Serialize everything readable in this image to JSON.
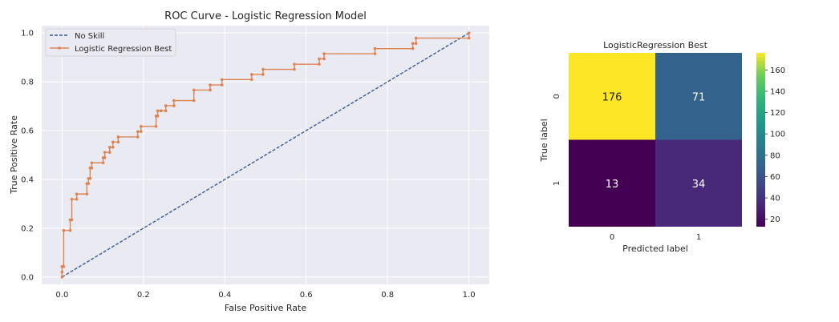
{
  "chart_data": [
    {
      "type": "line",
      "title": "ROC Curve - Logistic Regression Model",
      "xlabel": "False Positive Rate",
      "ylabel": "True Positive Rate",
      "xlim": [
        -0.05,
        1.05
      ],
      "ylim": [
        -0.03,
        1.03
      ],
      "xticks": [
        0.0,
        0.2,
        0.4,
        0.6,
        0.8,
        1.0
      ],
      "xtick_labels": [
        "0.0",
        "0.2",
        "0.4",
        "0.6",
        "0.8",
        "1.0"
      ],
      "yticks": [
        0.0,
        0.2,
        0.4,
        0.6,
        0.8,
        1.0
      ],
      "ytick_labels": [
        "0.0",
        "0.2",
        "0.4",
        "0.6",
        "0.8",
        "1.0"
      ],
      "grid": true,
      "legend": "top-left",
      "series": [
        {
          "name": "No Skill",
          "style": "dashed",
          "color": "#3b5b92",
          "x": [
            0,
            1
          ],
          "y": [
            0,
            1
          ]
        },
        {
          "name": "Logistic Regression Best",
          "style": "step-markers",
          "color": "#dd8452",
          "x": [
            0.0,
            0.0,
            0.0,
            0.004,
            0.004,
            0.004,
            0.02,
            0.02,
            0.024,
            0.024,
            0.036,
            0.036,
            0.061,
            0.061,
            0.065,
            0.065,
            0.069,
            0.069,
            0.073,
            0.073,
            0.101,
            0.101,
            0.105,
            0.105,
            0.117,
            0.117,
            0.125,
            0.125,
            0.138,
            0.138,
            0.186,
            0.186,
            0.194,
            0.194,
            0.231,
            0.231,
            0.235,
            0.235,
            0.243,
            0.243,
            0.255,
            0.255,
            0.275,
            0.275,
            0.324,
            0.324,
            0.364,
            0.364,
            0.393,
            0.393,
            0.466,
            0.466,
            0.494,
            0.494,
            0.571,
            0.571,
            0.632,
            0.632,
            0.644,
            0.644,
            0.769,
            0.769,
            0.862,
            0.862,
            0.87,
            0.87,
            1.0,
            1.0
          ],
          "y": [
            0.0,
            0.021,
            0.043,
            0.043,
            0.191,
            0.191,
            0.191,
            0.234,
            0.234,
            0.319,
            0.319,
            0.34,
            0.34,
            0.383,
            0.383,
            0.404,
            0.404,
            0.447,
            0.447,
            0.468,
            0.468,
            0.489,
            0.489,
            0.511,
            0.511,
            0.532,
            0.532,
            0.553,
            0.553,
            0.574,
            0.574,
            0.596,
            0.596,
            0.617,
            0.617,
            0.66,
            0.66,
            0.681,
            0.681,
            0.681,
            0.681,
            0.702,
            0.702,
            0.723,
            0.723,
            0.766,
            0.766,
            0.787,
            0.787,
            0.809,
            0.809,
            0.83,
            0.83,
            0.851,
            0.851,
            0.872,
            0.872,
            0.894,
            0.894,
            0.915,
            0.915,
            0.936,
            0.936,
            0.957,
            0.957,
            0.979,
            0.979,
            1.0
          ]
        }
      ]
    },
    {
      "type": "heatmap",
      "title": "LogisticRegression Best",
      "xlabel": "Predicted label",
      "ylabel": "True label",
      "x_categories": [
        "0",
        "1"
      ],
      "y_categories": [
        "0",
        "1"
      ],
      "values": [
        [
          176,
          71
        ],
        [
          13,
          34
        ]
      ],
      "colormap": "viridis",
      "colorbar_range": [
        13,
        176
      ],
      "colorbar_ticks": [
        20,
        40,
        60,
        80,
        100,
        120,
        140,
        160
      ],
      "colorbar_tick_labels": [
        "20",
        "40",
        "60",
        "80",
        "100",
        "120",
        "140",
        "160"
      ]
    }
  ]
}
